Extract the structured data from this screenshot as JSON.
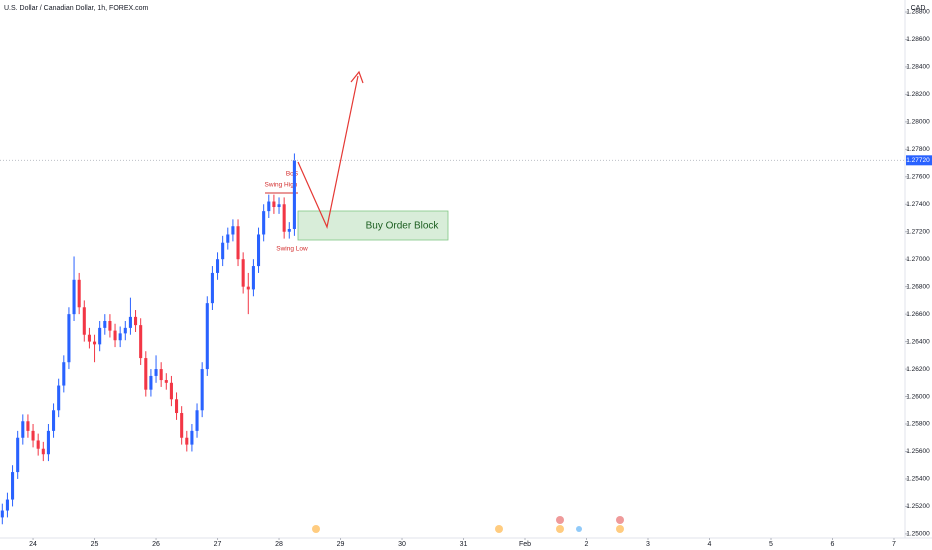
{
  "chart_data": {
    "type": "candlestick",
    "title": "U.S. Dollar / Canadian Dollar, 1h, FOREX.com",
    "currency": "CAD",
    "last_price": {
      "value": 1.2772,
      "label": "1.27720"
    },
    "annotations": [
      "BoS",
      "Swing High",
      "Swing Low",
      "Buy Order Block"
    ],
    "up_color": "#2962ff",
    "down_color": "#f23645",
    "x": [
      -12,
      -10,
      -8,
      -6,
      -4,
      -2,
      0,
      2,
      4,
      6,
      8,
      10,
      12,
      14,
      16,
      18,
      20,
      22,
      24,
      26,
      28,
      30,
      32,
      34,
      36,
      38,
      40,
      42,
      44,
      46,
      48,
      50,
      52,
      54,
      56,
      58,
      60,
      62,
      64,
      66,
      68,
      70,
      72,
      74,
      76,
      78,
      80,
      82,
      84,
      86,
      88,
      90,
      92,
      94,
      96,
      98,
      100,
      102
    ],
    "open": [
      1.2512,
      1.2517,
      1.2525,
      1.2545,
      1.257,
      1.2582,
      1.2575,
      1.2568,
      1.2562,
      1.2558,
      1.2575,
      1.259,
      1.2608,
      1.2625,
      1.266,
      1.2685,
      1.2665,
      1.2645,
      1.264,
      1.2638,
      1.265,
      1.2655,
      1.2648,
      1.2641,
      1.2646,
      1.265,
      1.2658,
      1.2652,
      1.2628,
      1.2605,
      1.2615,
      1.262,
      1.2612,
      1.261,
      1.2598,
      1.2588,
      1.257,
      1.2565,
      1.2575,
      1.259,
      1.262,
      1.2668,
      1.269,
      1.27,
      1.2712,
      1.2718,
      1.2724,
      1.27,
      1.268,
      1.2678,
      1.2695,
      1.2718,
      1.2735,
      1.2742,
      1.2738,
      1.274,
      1.272,
      1.2722
    ],
    "high": [
      1.2522,
      1.253,
      1.255,
      1.2575,
      1.2587,
      1.2587,
      1.258,
      1.2573,
      1.2567,
      1.258,
      1.2595,
      1.2613,
      1.263,
      1.2665,
      1.2702,
      1.269,
      1.267,
      1.265,
      1.2645,
      1.2655,
      1.266,
      1.266,
      1.2653,
      1.2651,
      1.2655,
      1.2672,
      1.2663,
      1.2657,
      1.2633,
      1.262,
      1.263,
      1.2625,
      1.2617,
      1.2615,
      1.2603,
      1.2593,
      1.2575,
      1.258,
      1.2595,
      1.2625,
      1.2673,
      1.2695,
      1.2705,
      1.2717,
      1.2723,
      1.2729,
      1.2729,
      1.2705,
      1.269,
      1.27,
      1.2723,
      1.274,
      1.2747,
      1.2747,
      1.2745,
      1.2745,
      1.2727,
      1.2777
    ],
    "low": [
      1.2507,
      1.2512,
      1.252,
      1.254,
      1.2565,
      1.257,
      1.2563,
      1.2557,
      1.2553,
      1.2553,
      1.257,
      1.2585,
      1.2603,
      1.262,
      1.2655,
      1.266,
      1.264,
      1.2635,
      1.2625,
      1.2633,
      1.2645,
      1.2643,
      1.2636,
      1.2636,
      1.2641,
      1.2645,
      1.2647,
      1.2623,
      1.26,
      1.26,
      1.261,
      1.2607,
      1.2605,
      1.2593,
      1.2583,
      1.2565,
      1.256,
      1.256,
      1.257,
      1.2585,
      1.2615,
      1.2663,
      1.2685,
      1.2695,
      1.2707,
      1.2713,
      1.2695,
      1.2675,
      1.266,
      1.2673,
      1.269,
      1.2713,
      1.273,
      1.2733,
      1.2733,
      1.2715,
      1.2715,
      1.2717
    ],
    "close": [
      1.2517,
      1.2525,
      1.2545,
      1.257,
      1.2582,
      1.2575,
      1.2568,
      1.2562,
      1.2558,
      1.2575,
      1.259,
      1.2608,
      1.2625,
      1.266,
      1.2685,
      1.2665,
      1.2645,
      1.264,
      1.2638,
      1.265,
      1.2655,
      1.2648,
      1.2641,
      1.2646,
      1.265,
      1.2658,
      1.2652,
      1.2628,
      1.2605,
      1.2615,
      1.262,
      1.2612,
      1.261,
      1.2598,
      1.2588,
      1.257,
      1.2565,
      1.2575,
      1.259,
      1.262,
      1.2668,
      1.269,
      1.27,
      1.2712,
      1.2718,
      1.2724,
      1.27,
      1.268,
      1.2678,
      1.2695,
      1.2718,
      1.2735,
      1.2742,
      1.2738,
      1.274,
      1.272,
      1.2722,
      1.2772
    ],
    "xlim": [
      -12.9,
      340.3
    ],
    "xticks": [
      {
        "value": 0,
        "label": "24"
      },
      {
        "value": 24,
        "label": "25"
      },
      {
        "value": 48,
        "label": "26"
      },
      {
        "value": 72,
        "label": "27"
      },
      {
        "value": 96,
        "label": "28"
      },
      {
        "value": 120,
        "label": "29"
      },
      {
        "value": 144,
        "label": "30"
      },
      {
        "value": 168,
        "label": "31"
      },
      {
        "value": 192,
        "label": "Feb"
      },
      {
        "value": 216,
        "label": "2"
      },
      {
        "value": 240,
        "label": "3"
      },
      {
        "value": 264,
        "label": "4"
      },
      {
        "value": 288,
        "label": "5"
      },
      {
        "value": 312,
        "label": "6"
      },
      {
        "value": 336,
        "label": "7"
      }
    ],
    "ylim": [
      1.2497,
      1.2888
    ],
    "yticks": [
      {
        "value": 1.25,
        "label": "1.25000"
      },
      {
        "value": 1.252,
        "label": "1.25200"
      },
      {
        "value": 1.254,
        "label": "1.25400"
      },
      {
        "value": 1.256,
        "label": "1.25600"
      },
      {
        "value": 1.258,
        "label": "1.25800"
      },
      {
        "value": 1.26,
        "label": "1.26000"
      },
      {
        "value": 1.262,
        "label": "1.26200"
      },
      {
        "value": 1.264,
        "label": "1.26400"
      },
      {
        "value": 1.266,
        "label": "1.26600"
      },
      {
        "value": 1.268,
        "label": "1.26800"
      },
      {
        "value": 1.27,
        "label": "1.27000"
      },
      {
        "value": 1.272,
        "label": "1.27200"
      },
      {
        "value": 1.274,
        "label": "1.27400"
      },
      {
        "value": 1.276,
        "label": "1.27600"
      },
      {
        "value": 1.278,
        "label": "1.27800"
      },
      {
        "value": 1.28,
        "label": "1.28000"
      },
      {
        "value": 1.282,
        "label": "1.28200"
      },
      {
        "value": 1.284,
        "label": "1.28400"
      },
      {
        "value": 1.286,
        "label": "1.28600"
      },
      {
        "value": 1.288,
        "label": "1.28800"
      }
    ],
    "grid": false
  }
}
